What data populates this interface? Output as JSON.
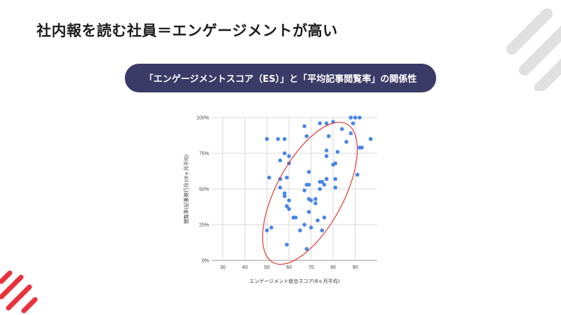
{
  "slide": {
    "title": "社内報を読む社員＝エンゲージメントが高い",
    "banner": "「エンゲージメントスコア（ES）」と「平均記事閲覧率」の関係性"
  },
  "colors": {
    "banner_bg": "#3a3b66",
    "point": "#4a86e8",
    "ellipse": "#e53935",
    "accent_red": "#e8323c",
    "deco_gray": "#e0e0e0"
  },
  "chart_data": {
    "type": "scatter",
    "title": "",
    "xlabel": "エンゲージメント総合スコア(6ヶ月平均)",
    "ylabel": "閲覧率(記事発行月)(6ヶ月平均)",
    "xlim": [
      25,
      100
    ],
    "ylim": [
      0,
      100
    ],
    "x_ticks": [
      "30",
      "40",
      "50",
      "60",
      "70",
      "80",
      "90"
    ],
    "y_ticks": [
      "0%",
      "25%",
      "50%",
      "75%",
      "100%"
    ],
    "grid": true,
    "legend": "none",
    "annotation": "red ellipse enclosing the main point cluster",
    "points": [
      {
        "x": 50,
        "y": 85
      },
      {
        "x": 51,
        "y": 58
      },
      {
        "x": 50,
        "y": 21
      },
      {
        "x": 52,
        "y": 23
      },
      {
        "x": 55,
        "y": 85
      },
      {
        "x": 56,
        "y": 70
      },
      {
        "x": 56,
        "y": 51
      },
      {
        "x": 56,
        "y": 57
      },
      {
        "x": 58,
        "y": 85
      },
      {
        "x": 58,
        "y": 75
      },
      {
        "x": 58,
        "y": 47
      },
      {
        "x": 58,
        "y": 45
      },
      {
        "x": 59,
        "y": 58
      },
      {
        "x": 59,
        "y": 38
      },
      {
        "x": 59,
        "y": 11
      },
      {
        "x": 60,
        "y": 73
      },
      {
        "x": 60,
        "y": 68
      },
      {
        "x": 60,
        "y": 42
      },
      {
        "x": 60,
        "y": 36
      },
      {
        "x": 62,
        "y": 30
      },
      {
        "x": 63,
        "y": 30
      },
      {
        "x": 65,
        "y": 21
      },
      {
        "x": 67,
        "y": 94
      },
      {
        "x": 67,
        "y": 49
      },
      {
        "x": 67,
        "y": 25
      },
      {
        "x": 68,
        "y": 87
      },
      {
        "x": 68,
        "y": 53
      },
      {
        "x": 68,
        "y": 8
      },
      {
        "x": 69,
        "y": 62
      },
      {
        "x": 69,
        "y": 53
      },
      {
        "x": 69,
        "y": 43
      },
      {
        "x": 69,
        "y": 34
      },
      {
        "x": 70,
        "y": 42
      },
      {
        "x": 70,
        "y": 23
      },
      {
        "x": 72,
        "y": 43
      },
      {
        "x": 72,
        "y": 40
      },
      {
        "x": 73,
        "y": 28
      },
      {
        "x": 74,
        "y": 96
      },
      {
        "x": 74,
        "y": 55
      },
      {
        "x": 74,
        "y": 50
      },
      {
        "x": 75,
        "y": 55
      },
      {
        "x": 75,
        "y": 21
      },
      {
        "x": 76,
        "y": 53
      },
      {
        "x": 76,
        "y": 30
      },
      {
        "x": 77,
        "y": 96
      },
      {
        "x": 77,
        "y": 73
      },
      {
        "x": 77,
        "y": 57
      },
      {
        "x": 77,
        "y": 77
      },
      {
        "x": 78,
        "y": 87
      },
      {
        "x": 80,
        "y": 97
      },
      {
        "x": 80,
        "y": 67
      },
      {
        "x": 81,
        "y": 68
      },
      {
        "x": 81,
        "y": 57
      },
      {
        "x": 81,
        "y": 51
      },
      {
        "x": 82,
        "y": 76
      },
      {
        "x": 84,
        "y": 92
      },
      {
        "x": 86,
        "y": 83
      },
      {
        "x": 88,
        "y": 89
      },
      {
        "x": 88,
        "y": 100
      },
      {
        "x": 89,
        "y": 96
      },
      {
        "x": 90,
        "y": 100
      },
      {
        "x": 91,
        "y": 60
      },
      {
        "x": 92,
        "y": 100
      },
      {
        "x": 92,
        "y": 79
      },
      {
        "x": 93,
        "y": 79
      },
      {
        "x": 97,
        "y": 85
      }
    ]
  }
}
